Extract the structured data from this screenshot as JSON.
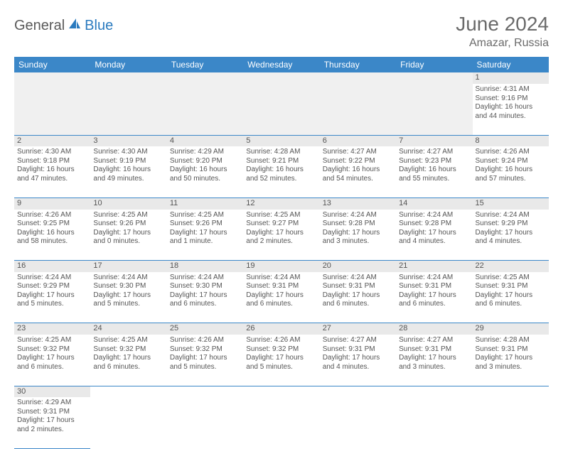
{
  "brand": {
    "part1": "General",
    "part2": "Blue"
  },
  "title": "June 2024",
  "location": "Amazar, Russia",
  "colors": {
    "header_bg": "#3b87c8",
    "header_text": "#ffffff",
    "daynum_bg": "#e9e9e9",
    "cell_border": "#3b87c8",
    "text": "#555555",
    "brand_gray": "#5a5a5a",
    "brand_blue": "#2b7bbf"
  },
  "weekdays": [
    "Sunday",
    "Monday",
    "Tuesday",
    "Wednesday",
    "Thursday",
    "Friday",
    "Saturday"
  ],
  "first_weekday_index": 6,
  "days": [
    {
      "n": 1,
      "sunrise": "4:31 AM",
      "sunset": "9:16 PM",
      "daylight": "16 hours and 44 minutes."
    },
    {
      "n": 2,
      "sunrise": "4:30 AM",
      "sunset": "9:18 PM",
      "daylight": "16 hours and 47 minutes."
    },
    {
      "n": 3,
      "sunrise": "4:30 AM",
      "sunset": "9:19 PM",
      "daylight": "16 hours and 49 minutes."
    },
    {
      "n": 4,
      "sunrise": "4:29 AM",
      "sunset": "9:20 PM",
      "daylight": "16 hours and 50 minutes."
    },
    {
      "n": 5,
      "sunrise": "4:28 AM",
      "sunset": "9:21 PM",
      "daylight": "16 hours and 52 minutes."
    },
    {
      "n": 6,
      "sunrise": "4:27 AM",
      "sunset": "9:22 PM",
      "daylight": "16 hours and 54 minutes."
    },
    {
      "n": 7,
      "sunrise": "4:27 AM",
      "sunset": "9:23 PM",
      "daylight": "16 hours and 55 minutes."
    },
    {
      "n": 8,
      "sunrise": "4:26 AM",
      "sunset": "9:24 PM",
      "daylight": "16 hours and 57 minutes."
    },
    {
      "n": 9,
      "sunrise": "4:26 AM",
      "sunset": "9:25 PM",
      "daylight": "16 hours and 58 minutes."
    },
    {
      "n": 10,
      "sunrise": "4:25 AM",
      "sunset": "9:26 PM",
      "daylight": "17 hours and 0 minutes."
    },
    {
      "n": 11,
      "sunrise": "4:25 AM",
      "sunset": "9:26 PM",
      "daylight": "17 hours and 1 minute."
    },
    {
      "n": 12,
      "sunrise": "4:25 AM",
      "sunset": "9:27 PM",
      "daylight": "17 hours and 2 minutes."
    },
    {
      "n": 13,
      "sunrise": "4:24 AM",
      "sunset": "9:28 PM",
      "daylight": "17 hours and 3 minutes."
    },
    {
      "n": 14,
      "sunrise": "4:24 AM",
      "sunset": "9:28 PM",
      "daylight": "17 hours and 4 minutes."
    },
    {
      "n": 15,
      "sunrise": "4:24 AM",
      "sunset": "9:29 PM",
      "daylight": "17 hours and 4 minutes."
    },
    {
      "n": 16,
      "sunrise": "4:24 AM",
      "sunset": "9:29 PM",
      "daylight": "17 hours and 5 minutes."
    },
    {
      "n": 17,
      "sunrise": "4:24 AM",
      "sunset": "9:30 PM",
      "daylight": "17 hours and 5 minutes."
    },
    {
      "n": 18,
      "sunrise": "4:24 AM",
      "sunset": "9:30 PM",
      "daylight": "17 hours and 6 minutes."
    },
    {
      "n": 19,
      "sunrise": "4:24 AM",
      "sunset": "9:31 PM",
      "daylight": "17 hours and 6 minutes."
    },
    {
      "n": 20,
      "sunrise": "4:24 AM",
      "sunset": "9:31 PM",
      "daylight": "17 hours and 6 minutes."
    },
    {
      "n": 21,
      "sunrise": "4:24 AM",
      "sunset": "9:31 PM",
      "daylight": "17 hours and 6 minutes."
    },
    {
      "n": 22,
      "sunrise": "4:25 AM",
      "sunset": "9:31 PM",
      "daylight": "17 hours and 6 minutes."
    },
    {
      "n": 23,
      "sunrise": "4:25 AM",
      "sunset": "9:32 PM",
      "daylight": "17 hours and 6 minutes."
    },
    {
      "n": 24,
      "sunrise": "4:25 AM",
      "sunset": "9:32 PM",
      "daylight": "17 hours and 6 minutes."
    },
    {
      "n": 25,
      "sunrise": "4:26 AM",
      "sunset": "9:32 PM",
      "daylight": "17 hours and 5 minutes."
    },
    {
      "n": 26,
      "sunrise": "4:26 AM",
      "sunset": "9:32 PM",
      "daylight": "17 hours and 5 minutes."
    },
    {
      "n": 27,
      "sunrise": "4:27 AM",
      "sunset": "9:31 PM",
      "daylight": "17 hours and 4 minutes."
    },
    {
      "n": 28,
      "sunrise": "4:27 AM",
      "sunset": "9:31 PM",
      "daylight": "17 hours and 3 minutes."
    },
    {
      "n": 29,
      "sunrise": "4:28 AM",
      "sunset": "9:31 PM",
      "daylight": "17 hours and 3 minutes."
    },
    {
      "n": 30,
      "sunrise": "4:29 AM",
      "sunset": "9:31 PM",
      "daylight": "17 hours and 2 minutes."
    }
  ],
  "labels": {
    "sunrise": "Sunrise:",
    "sunset": "Sunset:",
    "daylight": "Daylight:"
  }
}
